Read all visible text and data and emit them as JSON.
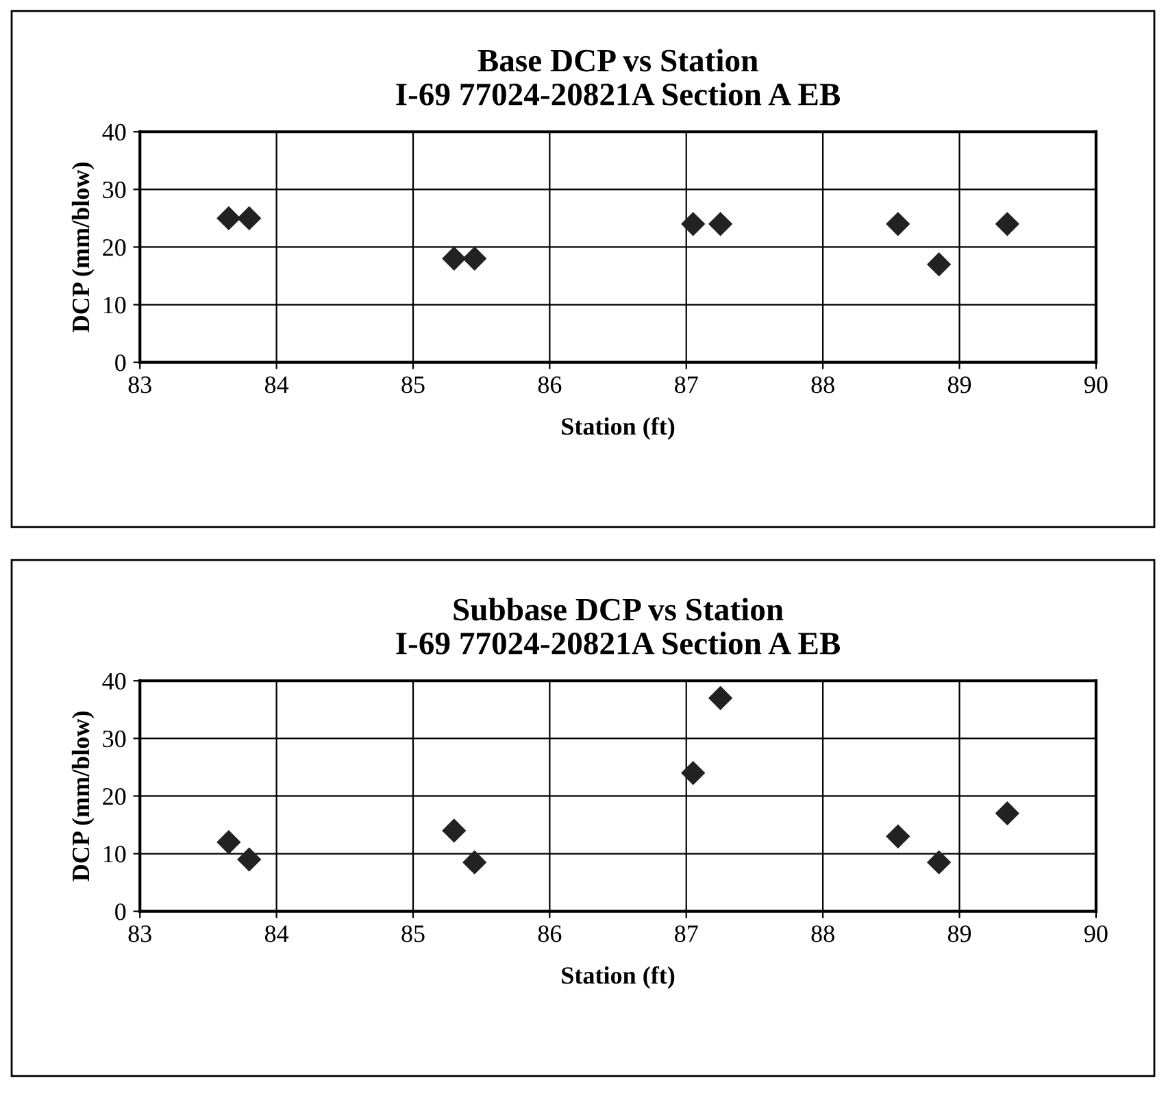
{
  "chart_data": [
    {
      "type": "scatter",
      "title": "Base DCP vs Station\nI-69 77024-20821A Section A EB",
      "xlabel": "Station (ft)",
      "ylabel": "DCP (mm/blow)",
      "marker": "diamond",
      "grid": true,
      "legend": false,
      "xlim": [
        83,
        90
      ],
      "xticks": [
        83,
        84,
        85,
        86,
        87,
        88,
        89,
        90
      ],
      "ylim": [
        0,
        40
      ],
      "yticks": [
        0,
        10,
        20,
        30,
        40
      ],
      "series": [
        {
          "color": "#222222",
          "x": [
            83.65,
            83.8,
            85.3,
            85.45,
            87.05,
            87.25,
            88.55,
            88.85,
            89.35
          ],
          "values": [
            25,
            25,
            18,
            18,
            24,
            24,
            24,
            17,
            24
          ]
        }
      ]
    },
    {
      "type": "scatter",
      "title": "Subbase DCP vs Station\nI-69 77024-20821A Section A EB",
      "xlabel": "Station (ft)",
      "ylabel": "DCP (mm/blow)",
      "marker": "diamond",
      "grid": true,
      "legend": false,
      "xlim": [
        83,
        90
      ],
      "xticks": [
        83,
        84,
        85,
        86,
        87,
        88,
        89,
        90
      ],
      "ylim": [
        0,
        40
      ],
      "yticks": [
        0,
        10,
        20,
        30,
        40
      ],
      "series": [
        {
          "color": "#222222",
          "x": [
            83.65,
            83.8,
            85.3,
            85.45,
            87.05,
            87.25,
            88.55,
            88.85,
            89.35
          ],
          "values": [
            12,
            9,
            14,
            8.5,
            24,
            37,
            13,
            8.5,
            17
          ]
        }
      ]
    }
  ]
}
